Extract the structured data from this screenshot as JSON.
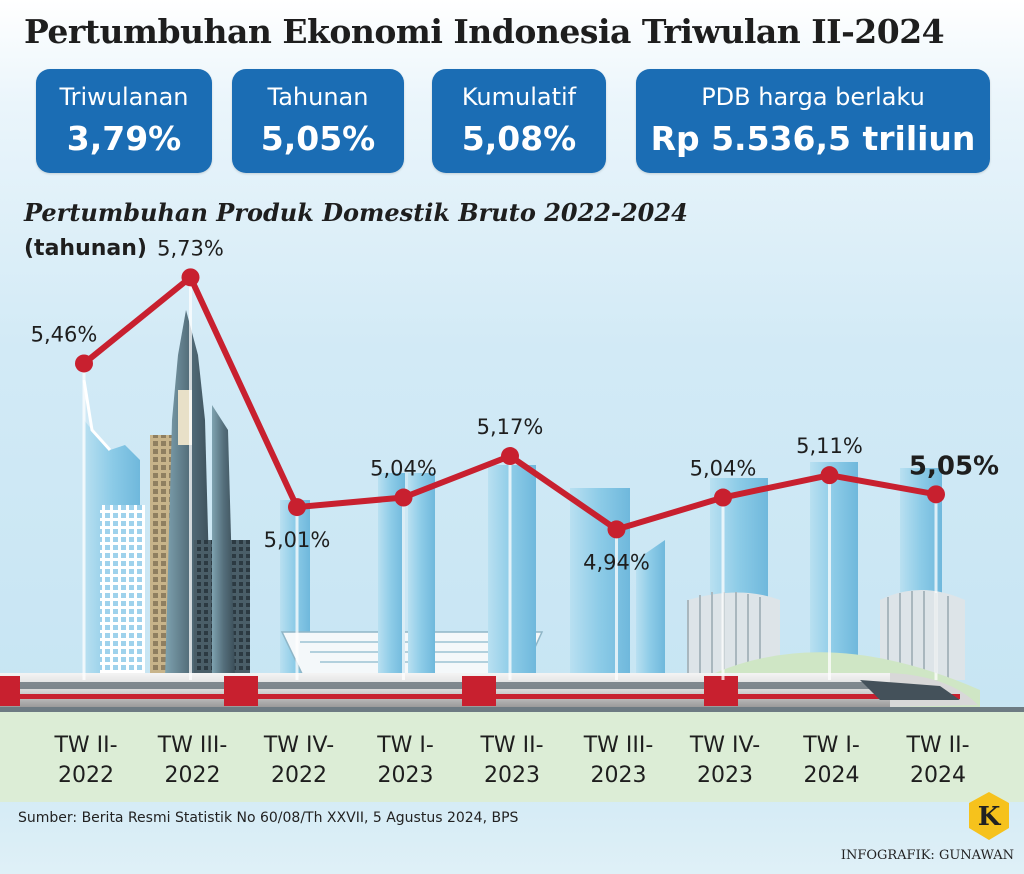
{
  "header": {
    "title": "Pertumbuhan Ekonomi Indonesia Triwulan II-2024"
  },
  "stats": [
    {
      "label": "Triwulanan",
      "value": "3,79%"
    },
    {
      "label": "Tahunan",
      "value": "5,05%"
    },
    {
      "label": "Kumulatif",
      "value": "5,08%"
    },
    {
      "label": "PDB harga berlaku",
      "value": "Rp 5.536,5 triliun"
    }
  ],
  "chart_data": {
    "type": "line",
    "title": "Pertumbuhan Produk Domestik Bruto 2022-2024",
    "ylabel": "(tahunan)",
    "categories": [
      [
        "TW II-",
        "2022"
      ],
      [
        "TW III-",
        "2022"
      ],
      [
        "TW IV-",
        "2022"
      ],
      [
        "TW I-",
        "2023"
      ],
      [
        "TW II-",
        "2023"
      ],
      [
        "TW III-",
        "2023"
      ],
      [
        "TW IV-",
        "2023"
      ],
      [
        "TW I-",
        "2024"
      ],
      [
        "TW II-",
        "2024"
      ]
    ],
    "values": [
      5.46,
      5.73,
      5.01,
      5.04,
      5.17,
      4.94,
      5.04,
      5.11,
      5.05
    ],
    "value_labels": [
      "5,46%",
      "5,73%",
      "5,01%",
      "5,04%",
      "5,17%",
      "4,94%",
      "5,04%",
      "5,11%",
      "5,05%"
    ],
    "ylim": [
      4.7,
      5.8
    ],
    "grid": false,
    "legend": "none",
    "line_color": "#c8202f",
    "highlight_last": true
  },
  "colors": {
    "box": "#1b6db4",
    "line": "#c8202f",
    "building": "#8fcbe6",
    "ground": "#d9ecd2"
  },
  "footer": {
    "source": "Sumber: Berita Resmi Statistik No 60/08/Th XXVII, 5 Agustus 2024, BPS",
    "credit": "INFOGRAFIK: GUNAWAN"
  },
  "logo": {
    "letter": "K"
  }
}
